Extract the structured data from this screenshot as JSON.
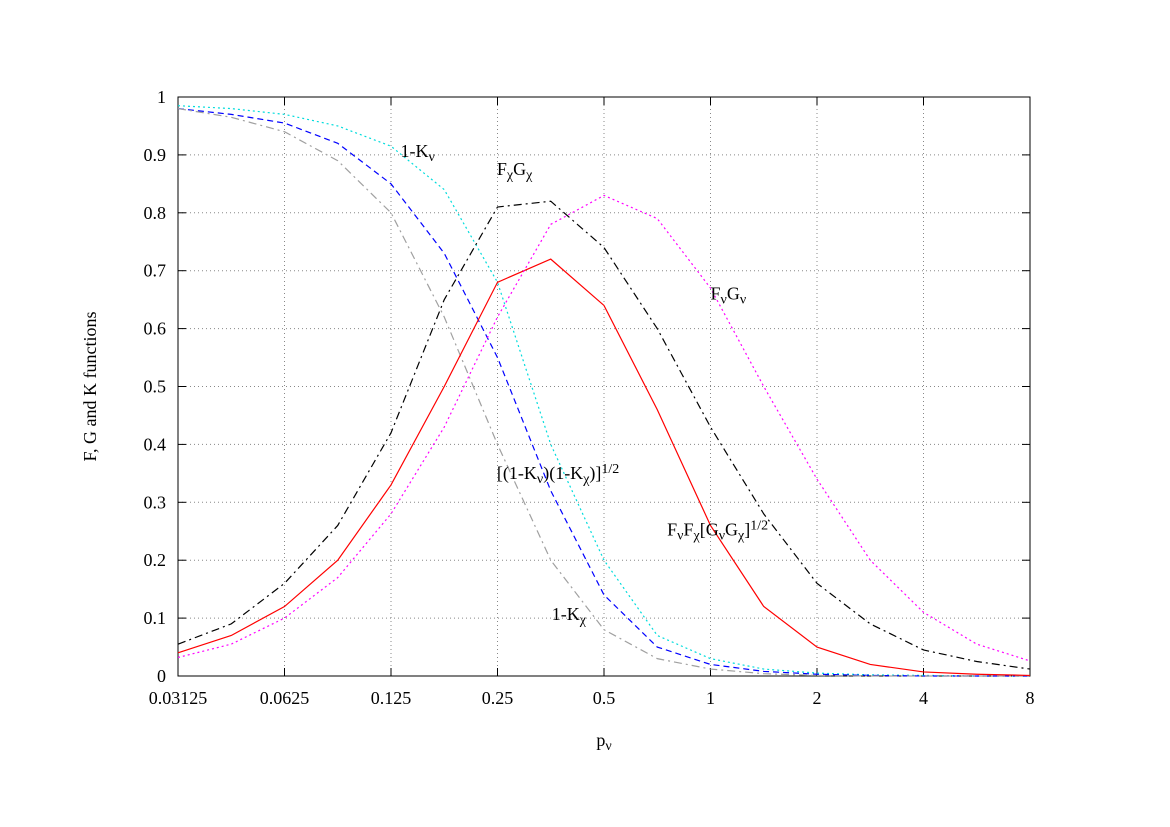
{
  "chart_data": {
    "type": "line",
    "xscale": "log",
    "grid": true,
    "xlabel": {
      "parts": [
        {
          "text": "p"
        },
        {
          "text": "ν",
          "shift": "sub"
        }
      ]
    },
    "ylabel": {
      "parts": [
        {
          "text": "F, G and K functions"
        }
      ]
    },
    "xlim": [
      0.03125,
      8
    ],
    "xticks": [
      0.03125,
      0.0625,
      0.125,
      0.25,
      0.5,
      1,
      2,
      4,
      8
    ],
    "ylim": [
      0,
      1
    ],
    "yticks": [
      0,
      0.1,
      0.2,
      0.3,
      0.4,
      0.5,
      0.6,
      0.7,
      0.8,
      0.9,
      1
    ],
    "x": [
      0.03125,
      0.0441942,
      0.0625,
      0.0883883,
      0.125,
      0.1767767,
      0.25,
      0.3535534,
      0.5,
      0.7071068,
      1,
      1.4142136,
      2,
      2.8284271,
      4,
      5.6568542,
      8
    ],
    "series": [
      {
        "color": "#00dcdc",
        "style": "dotted",
        "values": [
          0.985,
          0.98,
          0.97,
          0.95,
          0.915,
          0.84,
          0.68,
          0.4,
          0.2,
          0.07,
          0.03,
          0.012,
          0.005,
          0.002,
          0.001,
          0,
          0
        ]
      },
      {
        "color": "#0000ff",
        "style": "dashed",
        "values": [
          0.98,
          0.97,
          0.955,
          0.92,
          0.85,
          0.73,
          0.55,
          0.32,
          0.14,
          0.05,
          0.02,
          0.008,
          0.003,
          0.001,
          0,
          0,
          0
        ]
      },
      {
        "color": "#a0a0a0",
        "style": "dashdot",
        "values": [
          0.98,
          0.965,
          0.94,
          0.89,
          0.8,
          0.62,
          0.4,
          0.2,
          0.08,
          0.03,
          0.012,
          0.004,
          0.001,
          0,
          0,
          0,
          0
        ]
      },
      {
        "color": "#000000",
        "style": "dashdot",
        "values": [
          0.055,
          0.09,
          0.16,
          0.26,
          0.42,
          0.65,
          0.81,
          0.82,
          0.74,
          0.6,
          0.43,
          0.28,
          0.16,
          0.09,
          0.045,
          0.025,
          0.012
        ]
      },
      {
        "color": "#ff0000",
        "style": "solid",
        "values": [
          0.04,
          0.07,
          0.12,
          0.2,
          0.33,
          0.5,
          0.68,
          0.72,
          0.64,
          0.46,
          0.26,
          0.12,
          0.05,
          0.02,
          0.007,
          0.003,
          0.001
        ]
      },
      {
        "color": "#ff00ff",
        "style": "dotted",
        "values": [
          0.032,
          0.055,
          0.1,
          0.17,
          0.28,
          0.43,
          0.62,
          0.78,
          0.83,
          0.79,
          0.67,
          0.5,
          0.34,
          0.2,
          0.11,
          0.055,
          0.026
        ]
      }
    ],
    "annotations": [
      {
        "x": 0.133,
        "y": 0.896,
        "parts": [
          {
            "text": "1-K"
          },
          {
            "text": "ν",
            "shift": "sub"
          }
        ]
      },
      {
        "x": 0.249,
        "y": 0.865,
        "parts": [
          {
            "text": "F"
          },
          {
            "text": "χ",
            "shift": "sub"
          },
          {
            "text": "G"
          },
          {
            "text": "χ",
            "shift": "sub"
          }
        ]
      },
      {
        "x": 1.0,
        "y": 0.65,
        "parts": [
          {
            "text": "F"
          },
          {
            "text": "ν",
            "shift": "sub"
          },
          {
            "text": "G"
          },
          {
            "text": "ν",
            "shift": "sub"
          }
        ]
      },
      {
        "x": 0.249,
        "y": 0.34,
        "parts": [
          {
            "text": "[(1-K"
          },
          {
            "text": "ν",
            "shift": "sub"
          },
          {
            "text": ")(1-K"
          },
          {
            "text": "χ",
            "shift": "sub"
          },
          {
            "text": ")]"
          },
          {
            "text": "1/2",
            "shift": "super"
          }
        ]
      },
      {
        "x": 0.754,
        "y": 0.243,
        "parts": [
          {
            "text": "F"
          },
          {
            "text": "ν",
            "shift": "sub"
          },
          {
            "text": "F"
          },
          {
            "text": "χ",
            "shift": "sub"
          },
          {
            "text": "[G"
          },
          {
            "text": "ν",
            "shift": "sub"
          },
          {
            "text": "G"
          },
          {
            "text": "χ",
            "shift": "sub"
          },
          {
            "text": "]"
          },
          {
            "text": "1/2",
            "shift": "super"
          }
        ]
      },
      {
        "x": 0.356,
        "y": 0.097,
        "parts": [
          {
            "text": "1-K"
          },
          {
            "text": "χ",
            "shift": "sub"
          }
        ]
      }
    ]
  }
}
